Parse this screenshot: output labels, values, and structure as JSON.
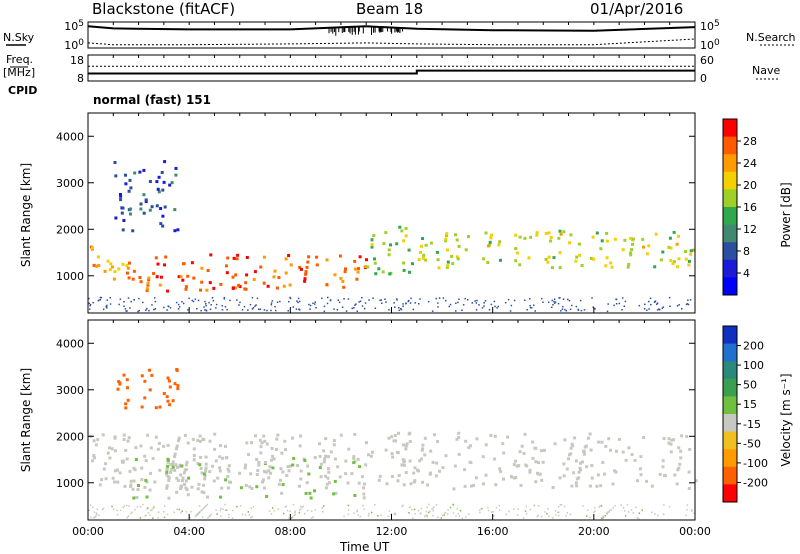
{
  "header": {
    "site": "Blackstone (fitACF)",
    "beam": "Beam 18",
    "date": "01/Apr/2016"
  },
  "left_labels": {
    "nsky": "N.Sky",
    "freq": "Freq.",
    "freq_unit": "[MHz]",
    "cpid": "CPID"
  },
  "right_labels": {
    "nsearch": "N.Search",
    "nave": "Nave"
  },
  "cpid_value": "normal (fast) 151",
  "noise_ticks_left": [
    "10^5",
    "10^0"
  ],
  "noise_ticks_right": [
    "10^5",
    "10^0"
  ],
  "freq_ticks_left": [
    "18",
    "8"
  ],
  "nave_ticks_right": [
    "60",
    "0"
  ],
  "power_colorbar": {
    "label": "Power [dB]",
    "ticks": [
      "28",
      "24",
      "20",
      "16",
      "12",
      "8",
      "4"
    ],
    "colors": [
      "#ff0000",
      "#ff5a00",
      "#ff9a00",
      "#f4d000",
      "#9ed028",
      "#2fa84e",
      "#3f8a6e",
      "#2a4fa0",
      "#1a1ad8",
      "#0000ff"
    ]
  },
  "velocity_colorbar": {
    "label": "Velocity [m s⁻¹]",
    "ticks": [
      "200",
      "100",
      "50",
      "15",
      "-15",
      "-50",
      "-100",
      "-200"
    ],
    "colors": [
      "#1030c0",
      "#2070d0",
      "#2a8a7a",
      "#3aa050",
      "#70c040",
      "#c8c8c0",
      "#f0c020",
      "#ff9a00",
      "#ff6000",
      "#ff0000"
    ]
  },
  "panel_ylabel": "Slant Range [km]",
  "x_label": "Time UT",
  "chart_data": [
    {
      "type": "line",
      "title": "",
      "series": [
        {
          "name": "N.Sky",
          "x": [
            0,
            1,
            4,
            8,
            11,
            13,
            16,
            20,
            24
          ],
          "y": [
            30000,
            10000,
            6000,
            6000,
            30000,
            8000,
            4000,
            3000,
            20000
          ]
        },
        {
          "name": "N.Search",
          "x": [
            0,
            1,
            4,
            8,
            11,
            13,
            16,
            20,
            24
          ],
          "y": [
            5,
            2,
            2,
            3,
            5,
            3,
            2,
            2,
            40
          ]
        }
      ],
      "xlim": [
        0,
        24
      ],
      "yscale": "log"
    },
    {
      "type": "line",
      "series": [
        {
          "name": "Freq.",
          "x": [
            0,
            13,
            13,
            24
          ],
          "y": [
            10.5,
            10.5,
            11.8,
            11.8
          ]
        },
        {
          "name": "Nave",
          "x": [
            0,
            24
          ],
          "y": [
            35,
            35
          ]
        }
      ],
      "xlim": [
        0,
        24
      ],
      "ylim": [
        8,
        18
      ],
      "y2lim": [
        0,
        60
      ]
    },
    {
      "type": "heatmap",
      "quantity": "Power [dB]",
      "xlabel": "",
      "ylabel": "Slant Range [km]",
      "xlim": [
        0,
        24
      ],
      "ylim": [
        200,
        4500
      ],
      "zlim": [
        0,
        30
      ],
      "features": [
        {
          "t": [
            0,
            1.5
          ],
          "range": [
            900,
            1700
          ],
          "power": 22
        },
        {
          "t": [
            1.5,
            11
          ],
          "range": [
            700,
            1500
          ],
          "power": 27
        },
        {
          "t": [
            1,
            3.5
          ],
          "range": [
            2000,
            3500
          ],
          "power": 6
        },
        {
          "t": [
            11,
            12.8
          ],
          "range": [
            1000,
            2100
          ],
          "power": 16
        },
        {
          "t": [
            13,
            24
          ],
          "range": [
            1200,
            2000
          ],
          "power": 18
        }
      ]
    },
    {
      "type": "heatmap",
      "quantity": "Velocity [m s⁻¹]",
      "xlabel": "Time UT",
      "ylabel": "Slant Range [km]",
      "xlim": [
        0,
        24
      ],
      "ylim": [
        200,
        4500
      ],
      "zlim": [
        -200,
        200
      ],
      "x_ticks": [
        "00:00",
        "04:00",
        "08:00",
        "12:00",
        "16:00",
        "20:00",
        "00:00"
      ],
      "y_ticks": [
        "1000",
        "2000",
        "3000",
        "4000"
      ],
      "features": [
        {
          "t": [
            0,
            24
          ],
          "range": [
            900,
            2100
          ],
          "velocity": 0
        },
        {
          "t": [
            1.5,
            11
          ],
          "range": [
            700,
            1600
          ],
          "velocity": 10
        },
        {
          "t": [
            1,
            3.5
          ],
          "range": [
            2600,
            3500
          ],
          "velocity": -150
        }
      ]
    }
  ]
}
